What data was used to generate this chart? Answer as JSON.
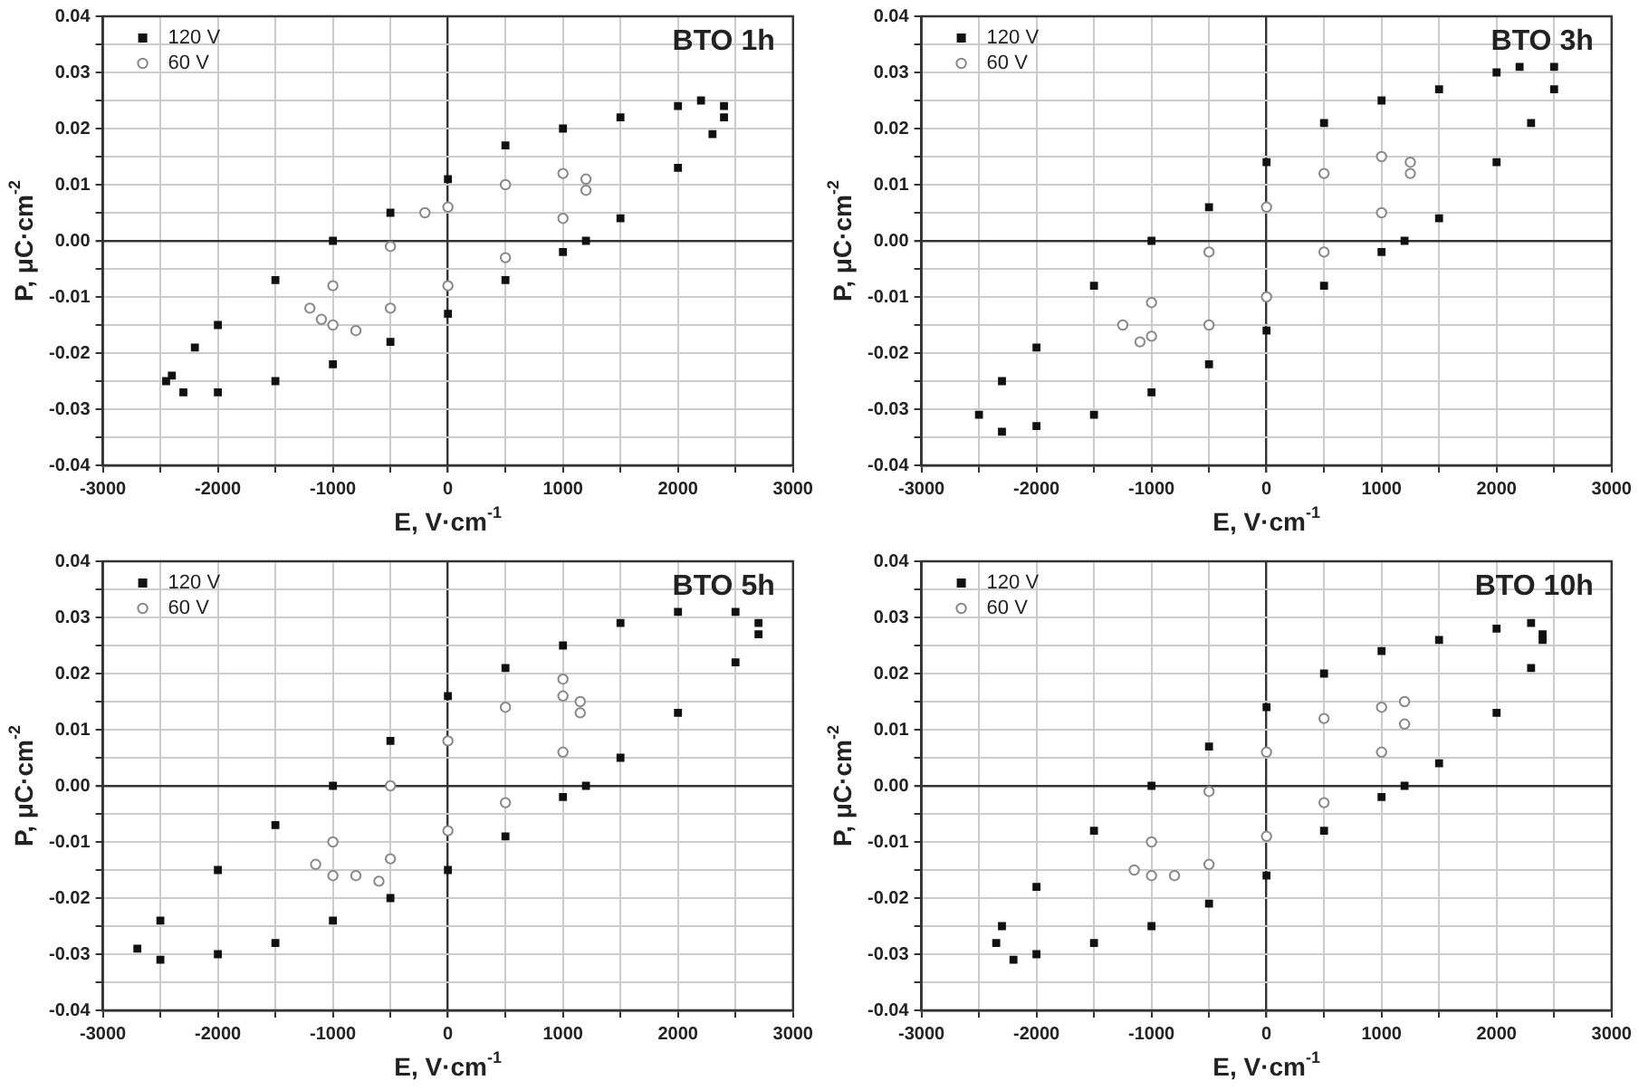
{
  "chart_data": [
    {
      "type": "scatter",
      "title": "BTO 1h",
      "xlabel": "E, V·cm$^{-1}$",
      "ylabel": "P, μC·cm$^{-2}$",
      "xlim": [
        -3000,
        3000
      ],
      "ylim": [
        -0.04,
        0.04
      ],
      "xticks": [
        -3000,
        {
          "value": -2500,
          "label": null
        },
        -2000,
        {
          "value": -1500,
          "label": null
        },
        -1000,
        {
          "value": -500,
          "label": null
        },
        0,
        {
          "value": 500,
          "label": null
        },
        1000,
        {
          "value": 1500,
          "label": null
        },
        2000,
        {
          "value": 2500,
          "label": null
        },
        3000
      ],
      "yticks": [
        -0.04,
        {
          "value": -0.035,
          "label": null
        },
        -0.03,
        {
          "value": -0.025,
          "label": null
        },
        -0.02,
        {
          "value": -0.015,
          "label": null
        },
        -0.01,
        {
          "value": -0.005,
          "label": null
        },
        {
          "value": 0,
          "label": "0.00"
        },
        {
          "value": 0.005,
          "label": null
        },
        0.01,
        {
          "value": 0.015,
          "label": null
        },
        0.02,
        {
          "value": 0.025,
          "label": null
        },
        0.03,
        {
          "value": 0.035,
          "label": null
        },
        0.04
      ],
      "grid": true,
      "legend": "top left",
      "series": [
        {
          "name": "120 V",
          "color": "#111111",
          "marker": "square",
          "x": [
            2400,
            2200,
            2000,
            1500,
            1000,
            500,
            0,
            -500,
            -1000,
            -1500,
            -2000,
            -2200,
            -2400,
            -2450,
            -2300,
            -2000,
            -1500,
            -1000,
            -500,
            0,
            500,
            1000,
            1200,
            1500,
            2000,
            2300,
            2400
          ],
          "values": [
            0.024,
            0.025,
            0.024,
            0.022,
            0.02,
            0.017,
            0.011,
            0.005,
            0.0,
            -0.007,
            -0.015,
            -0.019,
            -0.024,
            -0.025,
            -0.027,
            -0.027,
            -0.025,
            -0.022,
            -0.018,
            -0.013,
            -0.007,
            -0.002,
            0.0,
            0.004,
            0.013,
            0.019,
            0.022
          ]
        },
        {
          "name": "60 V",
          "color": "#888888",
          "marker": "circle",
          "x": [
            1200,
            1000,
            500,
            0,
            -500,
            -1000,
            -1200,
            -1100,
            -1000,
            -500,
            0,
            500,
            1000,
            1200,
            -800,
            -200
          ],
          "values": [
            0.011,
            0.012,
            0.01,
            0.006,
            -0.001,
            -0.008,
            -0.012,
            -0.014,
            -0.015,
            -0.012,
            -0.008,
            -0.003,
            0.004,
            0.009,
            -0.016,
            0.005
          ]
        }
      ]
    },
    {
      "type": "scatter",
      "title": "BTO 3h",
      "xlabel": "E, V·cm$^{-1}$",
      "ylabel": "P, μC·cm$^{-2}$",
      "xlim": [
        -3000,
        3000
      ],
      "ylim": [
        -0.04,
        0.04
      ],
      "xticks": [
        -3000,
        {
          "value": -2500,
          "label": null
        },
        -2000,
        {
          "value": -1500,
          "label": null
        },
        -1000,
        {
          "value": -500,
          "label": null
        },
        0,
        {
          "value": 500,
          "label": null
        },
        1000,
        {
          "value": 1500,
          "label": null
        },
        2000,
        {
          "value": 2500,
          "label": null
        },
        3000
      ],
      "yticks": [
        -0.04,
        {
          "value": -0.035,
          "label": null
        },
        -0.03,
        {
          "value": -0.025,
          "label": null
        },
        -0.02,
        {
          "value": -0.015,
          "label": null
        },
        -0.01,
        {
          "value": -0.005,
          "label": null
        },
        {
          "value": 0,
          "label": "0.00"
        },
        {
          "value": 0.005,
          "label": null
        },
        0.01,
        {
          "value": 0.015,
          "label": null
        },
        0.02,
        {
          "value": 0.025,
          "label": null
        },
        0.03,
        {
          "value": 0.035,
          "label": null
        },
        0.04
      ],
      "grid": true,
      "legend": "top left",
      "series": [
        {
          "name": "120 V",
          "color": "#111111",
          "marker": "square",
          "x": [
            2500,
            2200,
            2000,
            1500,
            1000,
            500,
            0,
            -500,
            -1000,
            -1500,
            -2000,
            -2300,
            -2500,
            -2300,
            -2000,
            -1500,
            -1000,
            -500,
            0,
            500,
            1000,
            1200,
            1500,
            2000,
            2300,
            2500
          ],
          "values": [
            0.031,
            0.031,
            0.03,
            0.027,
            0.025,
            0.021,
            0.014,
            0.006,
            0.0,
            -0.008,
            -0.019,
            -0.025,
            -0.031,
            -0.034,
            -0.033,
            -0.031,
            -0.027,
            -0.022,
            -0.016,
            -0.008,
            -0.002,
            0.0,
            0.004,
            0.014,
            0.021,
            0.027
          ]
        },
        {
          "name": "60 V",
          "color": "#888888",
          "marker": "circle",
          "x": [
            1250,
            1000,
            500,
            0,
            -500,
            -1000,
            -1250,
            -1100,
            -1000,
            -500,
            0,
            500,
            1000,
            1250
          ],
          "values": [
            0.014,
            0.015,
            0.012,
            0.006,
            -0.002,
            -0.011,
            -0.015,
            -0.018,
            -0.017,
            -0.015,
            -0.01,
            -0.002,
            0.005,
            0.012
          ]
        }
      ]
    },
    {
      "type": "scatter",
      "title": "BTO 5h",
      "xlabel": "E, V·cm$^{-1}$",
      "ylabel": "P, μC·cm$^{-2}$",
      "xlim": [
        -3000,
        3000
      ],
      "ylim": [
        -0.04,
        0.04
      ],
      "xticks": [
        -3000,
        {
          "value": -2500,
          "label": null
        },
        -2000,
        {
          "value": -1500,
          "label": null
        },
        -1000,
        {
          "value": -500,
          "label": null
        },
        0,
        {
          "value": 500,
          "label": null
        },
        1000,
        {
          "value": 1500,
          "label": null
        },
        2000,
        {
          "value": 2500,
          "label": null
        },
        3000
      ],
      "yticks": [
        -0.04,
        {
          "value": -0.035,
          "label": null
        },
        -0.03,
        {
          "value": -0.025,
          "label": null
        },
        -0.02,
        {
          "value": -0.015,
          "label": null
        },
        -0.01,
        {
          "value": -0.005,
          "label": null
        },
        {
          "value": 0,
          "label": "0.00"
        },
        {
          "value": 0.005,
          "label": null
        },
        0.01,
        {
          "value": 0.015,
          "label": null
        },
        0.02,
        {
          "value": 0.025,
          "label": null
        },
        0.03,
        {
          "value": 0.035,
          "label": null
        },
        0.04
      ],
      "grid": true,
      "legend": "top left",
      "series": [
        {
          "name": "120 V",
          "color": "#111111",
          "marker": "square",
          "x": [
            2700,
            2500,
            2000,
            1500,
            1000,
            500,
            0,
            -500,
            -1000,
            -1500,
            -2000,
            -2500,
            -2700,
            -2500,
            -2000,
            -1500,
            -1000,
            -500,
            0,
            500,
            1000,
            1200,
            1500,
            2000,
            2500,
            2700
          ],
          "values": [
            0.029,
            0.031,
            0.031,
            0.029,
            0.025,
            0.021,
            0.016,
            0.008,
            0.0,
            -0.007,
            -0.015,
            -0.024,
            -0.029,
            -0.031,
            -0.03,
            -0.028,
            -0.024,
            -0.02,
            -0.015,
            -0.009,
            -0.002,
            0.0,
            0.005,
            0.013,
            0.022,
            0.027
          ]
        },
        {
          "name": "60 V",
          "color": "#888888",
          "marker": "circle",
          "x": [
            1150,
            1000,
            500,
            0,
            -500,
            -1000,
            -1150,
            -1000,
            -800,
            -500,
            0,
            500,
            1000,
            1150,
            1000,
            -600
          ],
          "values": [
            0.015,
            0.016,
            0.014,
            0.008,
            0.0,
            -0.01,
            -0.014,
            -0.016,
            -0.016,
            -0.013,
            -0.008,
            -0.003,
            0.006,
            0.013,
            0.019,
            -0.017
          ]
        }
      ]
    },
    {
      "type": "scatter",
      "title": "BTO 10h",
      "xlabel": "E, V·cm$^{-1}$",
      "ylabel": "P, μC·cm$^{-2}$",
      "xlim": [
        -3000,
        3000
      ],
      "ylim": [
        -0.04,
        0.04
      ],
      "xticks": [
        -3000,
        {
          "value": -2500,
          "label": null
        },
        -2000,
        {
          "value": -1500,
          "label": null
        },
        -1000,
        {
          "value": -500,
          "label": null
        },
        0,
        {
          "value": 500,
          "label": null
        },
        1000,
        {
          "value": 1500,
          "label": null
        },
        2000,
        {
          "value": 2500,
          "label": null
        },
        3000
      ],
      "yticks": [
        -0.04,
        {
          "value": -0.035,
          "label": null
        },
        -0.03,
        {
          "value": -0.025,
          "label": null
        },
        -0.02,
        {
          "value": -0.015,
          "label": null
        },
        -0.01,
        {
          "value": -0.005,
          "label": null
        },
        {
          "value": 0,
          "label": "0.00"
        },
        {
          "value": 0.005,
          "label": null
        },
        0.01,
        {
          "value": 0.015,
          "label": null
        },
        0.02,
        {
          "value": 0.025,
          "label": null
        },
        0.03,
        {
          "value": 0.035,
          "label": null
        },
        0.04
      ],
      "grid": true,
      "legend": "top left",
      "series": [
        {
          "name": "120 V",
          "color": "#111111",
          "marker": "square",
          "x": [
            2400,
            2300,
            2000,
            1500,
            1000,
            500,
            0,
            -500,
            -1000,
            -1500,
            -2000,
            -2300,
            -2350,
            -2200,
            -2000,
            -1500,
            -1000,
            -500,
            0,
            500,
            1000,
            1200,
            1500,
            2000,
            2300,
            2400
          ],
          "values": [
            0.027,
            0.029,
            0.028,
            0.026,
            0.024,
            0.02,
            0.014,
            0.007,
            0.0,
            -0.008,
            -0.018,
            -0.025,
            -0.028,
            -0.031,
            -0.03,
            -0.028,
            -0.025,
            -0.021,
            -0.016,
            -0.008,
            -0.002,
            0.0,
            0.004,
            0.013,
            0.021,
            0.026
          ]
        },
        {
          "name": "60 V",
          "color": "#888888",
          "marker": "circle",
          "x": [
            1200,
            1000,
            500,
            0,
            -500,
            -1000,
            -1150,
            -1000,
            -800,
            -500,
            0,
            500,
            1000,
            1200
          ],
          "values": [
            0.015,
            0.014,
            0.012,
            0.006,
            -0.001,
            -0.01,
            -0.015,
            -0.016,
            -0.016,
            -0.014,
            -0.009,
            -0.003,
            0.006,
            0.011
          ]
        }
      ]
    }
  ]
}
